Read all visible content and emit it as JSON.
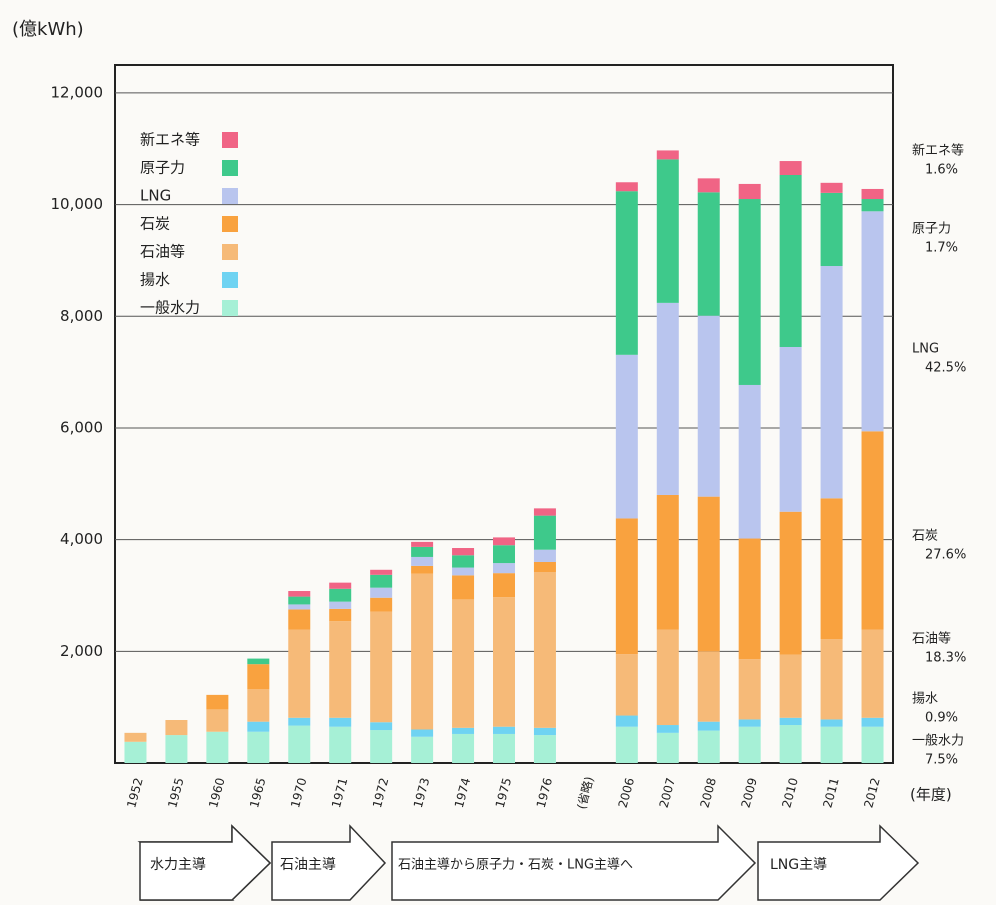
{
  "chart_data": {
    "type": "stacked-bar",
    "unit_label": "(億kWh)",
    "x_unit_label": "(年度)",
    "categories": [
      "1952",
      "1955",
      "1960",
      "1965",
      "1970",
      "1971",
      "1972",
      "1973",
      "1974",
      "1975",
      "1976",
      "(省略)",
      "2006",
      "2007",
      "2008",
      "2009",
      "2010",
      "2011",
      "2012"
    ],
    "series": [
      {
        "name": "一般水力",
        "color": "#a6f0d6",
        "values": [
          380,
          500,
          560,
          560,
          670,
          650,
          590,
          470,
          520,
          520,
          500,
          null,
          650,
          540,
          580,
          650,
          680,
          650,
          650
        ]
      },
      {
        "name": "揚水",
        "color": "#6fd3f2",
        "values": [
          0,
          0,
          0,
          180,
          140,
          160,
          140,
          130,
          110,
          130,
          130,
          null,
          200,
          140,
          160,
          130,
          130,
          130,
          160
        ]
      },
      {
        "name": "石油等",
        "color": "#f6ba78",
        "values": [
          160,
          270,
          400,
          580,
          1580,
          1730,
          1980,
          2790,
          2300,
          2320,
          2790,
          null,
          1100,
          1710,
          1260,
          1080,
          1130,
          1440,
          1580
        ]
      },
      {
        "name": "石炭",
        "color": "#f9a23f",
        "values": [
          0,
          0,
          260,
          450,
          360,
          220,
          250,
          140,
          430,
          430,
          180,
          null,
          2430,
          2410,
          2770,
          2160,
          2560,
          2520,
          3550
        ]
      },
      {
        "name": "LNG",
        "color": "#b9c5ee",
        "values": [
          0,
          0,
          0,
          0,
          90,
          130,
          180,
          160,
          140,
          180,
          220,
          null,
          2930,
          3440,
          3240,
          2750,
          2950,
          4160,
          3940
        ]
      },
      {
        "name": "原子力",
        "color": "#3ec98b",
        "values": [
          0,
          0,
          0,
          100,
          140,
          230,
          230,
          180,
          220,
          320,
          610,
          null,
          2930,
          2570,
          2210,
          3330,
          3080,
          1310,
          220
        ]
      },
      {
        "name": "新エネ等",
        "color": "#f06485",
        "values": [
          0,
          0,
          0,
          0,
          100,
          110,
          90,
          90,
          130,
          140,
          130,
          null,
          160,
          160,
          250,
          270,
          250,
          180,
          180
        ]
      }
    ],
    "ylim": [
      0,
      12500
    ],
    "yticks": [
      {
        "value": 2000,
        "label": "2,000"
      },
      {
        "value": 4000,
        "label": "4,000"
      },
      {
        "value": 6000,
        "label": "6,000"
      },
      {
        "value": 8000,
        "label": "8,000"
      },
      {
        "value": 10000,
        "label": "10,000"
      },
      {
        "value": 12000,
        "label": "12,000"
      }
    ],
    "grid": true,
    "annotations": [
      {
        "label": "新エネ等",
        "text": "1.6%"
      },
      {
        "label": "原子力",
        "text": "1.7%"
      },
      {
        "label": "LNG",
        "text": "42.5%"
      },
      {
        "label": "石炭",
        "text": "27.6%"
      },
      {
        "label": "石油等",
        "text": "18.3%"
      },
      {
        "label": "揚水",
        "text": "0.9%"
      },
      {
        "label": "一般水力",
        "text": "7.5%"
      }
    ],
    "phases": [
      "水力主導",
      "石油主導",
      "石油主導から原子力・石炭・LNG主導へ",
      "LNG主導"
    ]
  }
}
